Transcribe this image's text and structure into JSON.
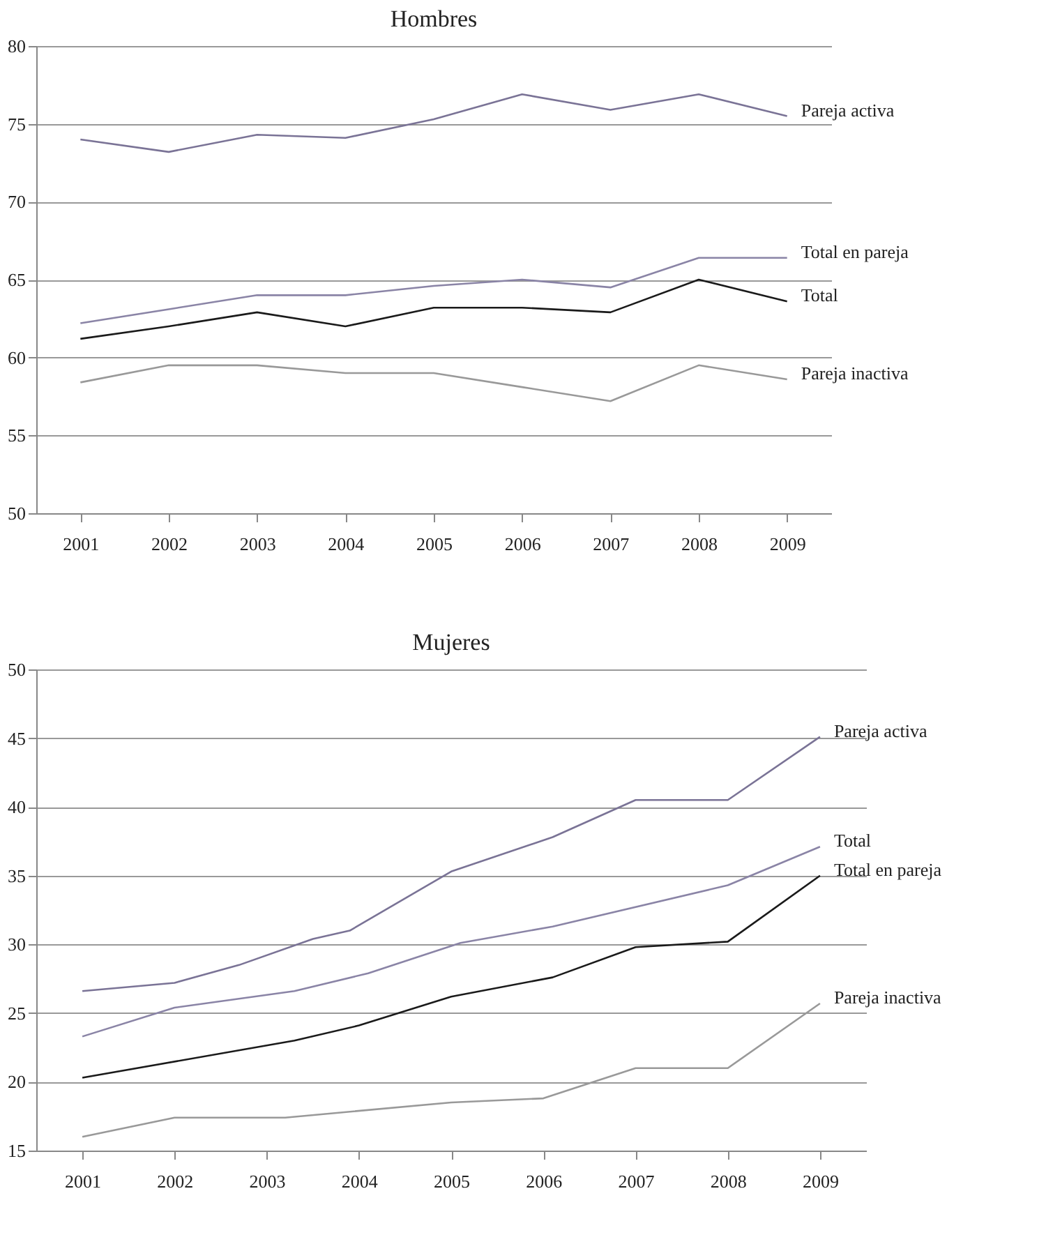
{
  "chart_data": [
    {
      "type": "line",
      "title": "Hombres",
      "xlim": [
        2000.5,
        2009.5
      ],
      "xticks": [
        2001,
        2002,
        2003,
        2004,
        2005,
        2006,
        2007,
        2008,
        2009
      ],
      "ylim": [
        50,
        80
      ],
      "yticks": [
        50,
        55,
        60,
        65,
        70,
        75,
        80
      ],
      "grid": "y",
      "legend": false,
      "line_style": "solid",
      "marker": "none",
      "x": [
        2001,
        2002,
        2003,
        2004,
        2005,
        2006,
        2007,
        2008,
        2009
      ],
      "series": [
        {
          "name": "Pareja activa",
          "color": "#7a7396",
          "values": [
            74.0,
            73.2,
            74.3,
            74.1,
            75.3,
            76.9,
            75.9,
            76.9,
            75.5
          ]
        },
        {
          "name": "Total en pareja",
          "color": "#8a84a6",
          "values": [
            62.2,
            63.1,
            64.0,
            64.0,
            64.6,
            65.0,
            64.5,
            66.4,
            66.4
          ]
        },
        {
          "name": "Total",
          "color": "#1a1a1a",
          "values": [
            61.2,
            62.0,
            62.9,
            62.0,
            63.2,
            63.2,
            62.9,
            65.0,
            63.6
          ]
        },
        {
          "name": "Pareja inactiva",
          "color": "#999999",
          "values": [
            58.4,
            59.5,
            59.5,
            59.0,
            59.0,
            58.1,
            57.2,
            59.5,
            58.6
          ]
        }
      ]
    },
    {
      "type": "line",
      "title": "Mujeres",
      "xlim": [
        2000.5,
        2009.5
      ],
      "xticks": [
        2001,
        2002,
        2003,
        2004,
        2005,
        2006,
        2007,
        2008,
        2009
      ],
      "ylim": [
        15,
        50
      ],
      "yticks": [
        15,
        20,
        25,
        30,
        35,
        40,
        45,
        50
      ],
      "grid": "y",
      "legend": false,
      "line_style": "solid",
      "marker": "none",
      "series": [
        {
          "name": "Pareja activa",
          "color": "#7a7396",
          "x": [
            2001,
            2002,
            2002.7,
            2003.5,
            2003.9,
            2005,
            2006.1,
            2007,
            2008,
            2009
          ],
          "values": [
            26.6,
            27.2,
            28.5,
            30.4,
            31.0,
            35.3,
            37.8,
            40.5,
            40.5,
            45.1
          ]
        },
        {
          "name": "Total",
          "color": "#8a84a6",
          "x": [
            2001,
            2002,
            2003.3,
            2004.1,
            2005.1,
            2006.1,
            2008,
            2009
          ],
          "values": [
            23.3,
            25.4,
            26.6,
            27.9,
            30.1,
            31.3,
            34.3,
            37.1
          ]
        },
        {
          "name": "Total en pareja",
          "color": "#1a1a1a",
          "x": [
            2001,
            2003.3,
            2004,
            2005,
            2006.1,
            2007,
            2008,
            2009
          ],
          "values": [
            20.3,
            23.0,
            24.1,
            26.2,
            27.6,
            29.8,
            30.2,
            35.0
          ]
        },
        {
          "name": "Pareja inactiva",
          "color": "#999999",
          "x": [
            2001,
            2002,
            2003.2,
            2005,
            2006,
            2007,
            2008,
            2009
          ],
          "values": [
            16.0,
            17.4,
            17.4,
            18.5,
            18.8,
            21.0,
            21.0,
            25.7
          ]
        }
      ]
    }
  ]
}
